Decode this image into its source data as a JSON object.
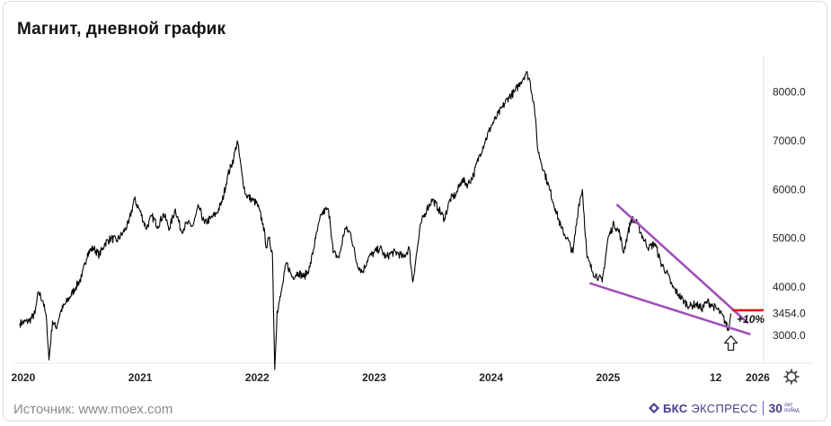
{
  "title": "Магнит, дневной график",
  "source": "Источник: www.moex.com",
  "brand": {
    "name": "БКС",
    "sub": "ЭКСПРЕСС",
    "anniv": "30",
    "anniv_line1": "лет",
    "anniv_line2": "побед"
  },
  "settings_icon": "gear-icon",
  "colors": {
    "price_line": "#000000",
    "channel": "#a04fb8",
    "target": "#e01818",
    "axis_text": "#222222"
  },
  "chart_data": {
    "type": "line",
    "title": "Магнит, дневной график",
    "xlabel": "",
    "ylabel": "",
    "x_ticks": [
      "2020",
      "2021",
      "2022",
      "2023",
      "2024",
      "2025",
      "12",
      "2026"
    ],
    "y_ticks": [
      3000,
      4000,
      5000,
      6000,
      7000,
      8000
    ],
    "y_tick_labels": [
      "3000.0",
      "4000.0",
      "5000.0",
      "6000.0",
      "7000.0",
      "8000.0"
    ],
    "ylim": [
      2450,
      8750
    ],
    "xlim": [
      2019.97,
      2026.33
    ],
    "current_price": 3454.0,
    "current_price_label": "3454.0",
    "series": [
      {
        "values_xy": [
          [
            2019.97,
            3250
          ],
          [
            2020.05,
            3300
          ],
          [
            2020.1,
            3450
          ],
          [
            2020.13,
            3900
          ],
          [
            2020.17,
            3700
          ],
          [
            2020.2,
            3300
          ],
          [
            2020.22,
            2500
          ],
          [
            2020.25,
            3300
          ],
          [
            2020.28,
            3150
          ],
          [
            2020.32,
            3500
          ],
          [
            2020.4,
            3800
          ],
          [
            2020.45,
            4000
          ],
          [
            2020.5,
            4200
          ],
          [
            2020.55,
            4700
          ],
          [
            2020.6,
            4800
          ],
          [
            2020.65,
            4650
          ],
          [
            2020.7,
            4900
          ],
          [
            2020.75,
            5000
          ],
          [
            2020.8,
            4950
          ],
          [
            2020.85,
            5100
          ],
          [
            2020.9,
            5300
          ],
          [
            2020.95,
            5800
          ],
          [
            2021.0,
            5550
          ],
          [
            2021.05,
            5200
          ],
          [
            2021.1,
            5450
          ],
          [
            2021.15,
            5250
          ],
          [
            2021.2,
            5500
          ],
          [
            2021.25,
            5200
          ],
          [
            2021.3,
            5600
          ],
          [
            2021.35,
            5150
          ],
          [
            2021.4,
            5300
          ],
          [
            2021.45,
            5250
          ],
          [
            2021.5,
            5650
          ],
          [
            2021.55,
            5300
          ],
          [
            2021.6,
            5400
          ],
          [
            2021.65,
            5500
          ],
          [
            2021.7,
            5750
          ],
          [
            2021.75,
            6300
          ],
          [
            2021.8,
            6650
          ],
          [
            2021.83,
            7000
          ],
          [
            2021.87,
            6300
          ],
          [
            2021.9,
            5900
          ],
          [
            2021.95,
            5800
          ],
          [
            2022.0,
            5700
          ],
          [
            2022.05,
            5300
          ],
          [
            2022.08,
            4800
          ],
          [
            2022.1,
            5000
          ],
          [
            2022.13,
            4700
          ],
          [
            2022.15,
            2300
          ],
          [
            2022.17,
            3500
          ],
          [
            2022.2,
            3800
          ],
          [
            2022.25,
            4500
          ],
          [
            2022.3,
            4200
          ],
          [
            2022.35,
            4300
          ],
          [
            2022.4,
            4200
          ],
          [
            2022.45,
            4400
          ],
          [
            2022.5,
            5000
          ],
          [
            2022.55,
            5500
          ],
          [
            2022.6,
            5600
          ],
          [
            2022.62,
            5450
          ],
          [
            2022.65,
            4700
          ],
          [
            2022.7,
            4600
          ],
          [
            2022.75,
            5200
          ],
          [
            2022.8,
            5100
          ],
          [
            2022.85,
            4500
          ],
          [
            2022.9,
            4300
          ],
          [
            2022.95,
            4600
          ],
          [
            2023.0,
            4700
          ],
          [
            2023.05,
            4800
          ],
          [
            2023.1,
            4600
          ],
          [
            2023.15,
            4700
          ],
          [
            2023.2,
            4700
          ],
          [
            2023.25,
            4600
          ],
          [
            2023.3,
            4800
          ],
          [
            2023.33,
            4100
          ],
          [
            2023.37,
            4800
          ],
          [
            2023.4,
            5300
          ],
          [
            2023.45,
            5600
          ],
          [
            2023.5,
            5800
          ],
          [
            2023.55,
            5600
          ],
          [
            2023.6,
            5400
          ],
          [
            2023.65,
            5800
          ],
          [
            2023.7,
            5900
          ],
          [
            2023.75,
            6200
          ],
          [
            2023.8,
            6100
          ],
          [
            2023.85,
            6300
          ],
          [
            2023.9,
            6700
          ],
          [
            2023.95,
            7000
          ],
          [
            2024.0,
            7300
          ],
          [
            2024.05,
            7500
          ],
          [
            2024.1,
            7700
          ],
          [
            2024.15,
            7900
          ],
          [
            2024.2,
            8000
          ],
          [
            2024.25,
            8200
          ],
          [
            2024.3,
            8400
          ],
          [
            2024.33,
            8250
          ],
          [
            2024.37,
            7700
          ],
          [
            2024.4,
            6800
          ],
          [
            2024.45,
            6400
          ],
          [
            2024.5,
            6000
          ],
          [
            2024.55,
            5600
          ],
          [
            2024.6,
            5200
          ],
          [
            2024.65,
            5000
          ],
          [
            2024.7,
            4700
          ],
          [
            2024.75,
            5700
          ],
          [
            2024.78,
            6000
          ],
          [
            2024.82,
            4600
          ],
          [
            2024.87,
            4300
          ],
          [
            2024.92,
            4200
          ],
          [
            2024.95,
            4100
          ],
          [
            2025.0,
            5000
          ],
          [
            2025.05,
            5300
          ],
          [
            2025.1,
            5100
          ],
          [
            2025.13,
            4700
          ],
          [
            2025.17,
            5100
          ],
          [
            2025.2,
            5400
          ],
          [
            2025.25,
            5300
          ],
          [
            2025.3,
            5000
          ],
          [
            2025.35,
            4800
          ],
          [
            2025.4,
            4900
          ],
          [
            2025.45,
            4500
          ],
          [
            2025.5,
            4300
          ],
          [
            2025.55,
            4000
          ],
          [
            2025.6,
            3850
          ],
          [
            2025.65,
            3700
          ],
          [
            2025.7,
            3600
          ],
          [
            2025.75,
            3650
          ],
          [
            2025.8,
            3550
          ],
          [
            2025.85,
            3700
          ],
          [
            2025.9,
            3600
          ],
          [
            2025.95,
            3500
          ],
          [
            2026.0,
            3300
          ],
          [
            2026.03,
            3100
          ],
          [
            2026.05,
            3454
          ]
        ]
      }
    ],
    "trendlines": [
      {
        "points": [
          [
            2025.08,
            5680
          ],
          [
            2026.19,
            3270
          ]
        ]
      },
      {
        "points": [
          [
            2024.85,
            4070
          ],
          [
            2026.21,
            3030
          ]
        ]
      }
    ],
    "target_line": {
      "y": 3520,
      "x_from": 2026.06,
      "x_to": 2026.33
    },
    "annotation": "+10%",
    "arrow": "up-arrow"
  }
}
